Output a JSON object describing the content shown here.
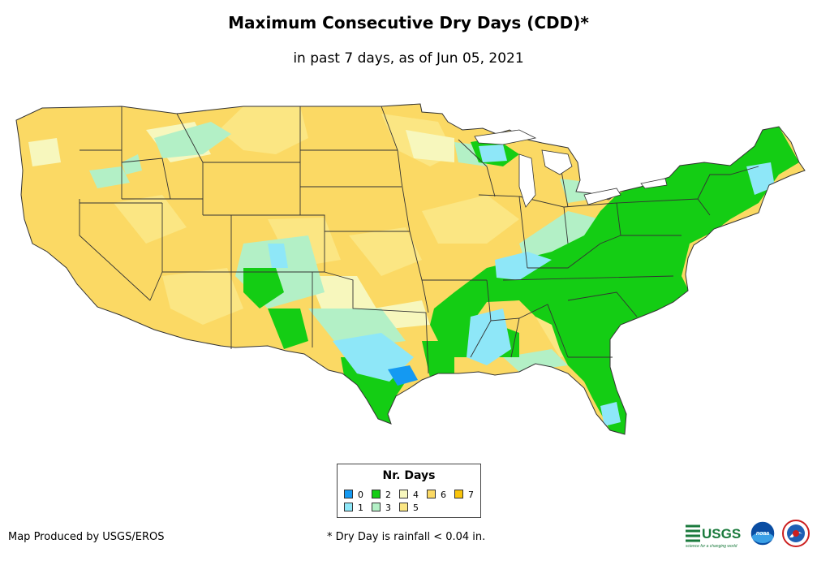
{
  "title": "Maximum Consecutive Dry Days (CDD)*",
  "subtitle": "in past 7 days, as of Jun 05, 2021",
  "legend": {
    "title": "Nr. Days",
    "items": [
      {
        "label": "0",
        "color": "#1499f2"
      },
      {
        "label": "1",
        "color": "#8ee7f8"
      },
      {
        "label": "2",
        "color": "#14cd14"
      },
      {
        "label": "3",
        "color": "#b3f0c6"
      },
      {
        "label": "4",
        "color": "#f7f7bd"
      },
      {
        "label": "5",
        "color": "#fbe683"
      },
      {
        "label": "6",
        "color": "#fbd964"
      },
      {
        "label": "7",
        "color": "#f9c40b"
      }
    ]
  },
  "credit": "Map Produced by USGS/EROS",
  "footnote": "* Dry Day is rainfall < 0.04 in.",
  "logos": {
    "usgs": "USGS",
    "usgs_tagline": "science for a changing world",
    "noaa": "noaa"
  }
}
